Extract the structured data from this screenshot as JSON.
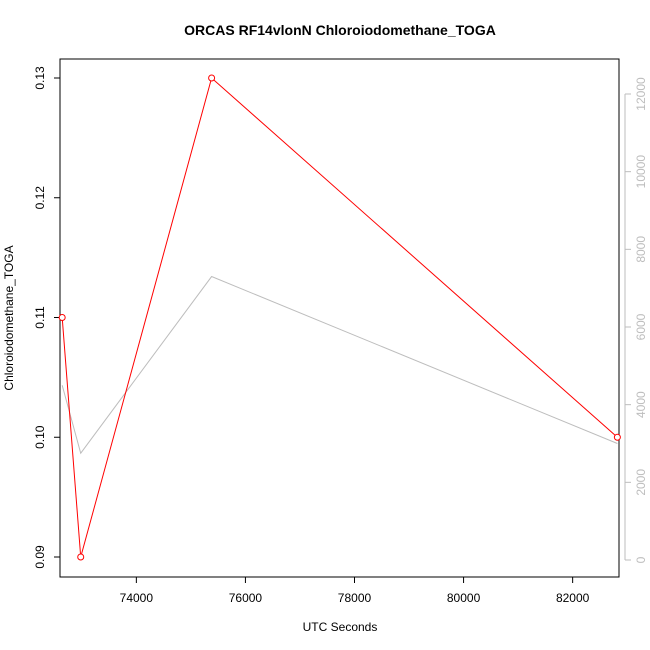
{
  "chart_data": {
    "type": "line",
    "title": "ORCAS RF14vlonN Chloroiodomethane_TOGA",
    "xlabel": "UTC Seconds",
    "ylabel": "Chloroiodomethane_TOGA",
    "xlim": [
      72600,
      82850
    ],
    "ylim": [
      0.09,
      0.13
    ],
    "y2lim": [
      0,
      12000
    ],
    "x_ticks": [
      74000,
      76000,
      78000,
      80000,
      82000
    ],
    "y_ticks": [
      0.09,
      0.1,
      0.11,
      0.12,
      0.13
    ],
    "y2_ticks": [
      0,
      2000,
      4000,
      6000,
      8000,
      10000,
      12000
    ],
    "x_tick_labels": [
      "74000",
      "76000",
      "78000",
      "80000",
      "82000"
    ],
    "y_tick_labels": [
      "0.09",
      "0.10",
      "0.11",
      "0.12",
      "0.13"
    ],
    "y2_tick_labels": [
      "0",
      "2000",
      "4000",
      "6000",
      "8000",
      "10000",
      "12000"
    ],
    "series": [
      {
        "axis": "left",
        "color": "#ff0000",
        "markers": "open-circle",
        "x": [
          72640,
          72980,
          75380,
          82820
        ],
        "y": [
          0.11,
          0.09,
          0.13,
          0.1
        ]
      },
      {
        "axis": "right",
        "color": "#bdbdbd",
        "markers": "none",
        "x": [
          72640,
          72980,
          75380,
          82820
        ],
        "y": [
          4500,
          2750,
          7300,
          3000
        ]
      }
    ],
    "grid": false,
    "legend": "none"
  }
}
